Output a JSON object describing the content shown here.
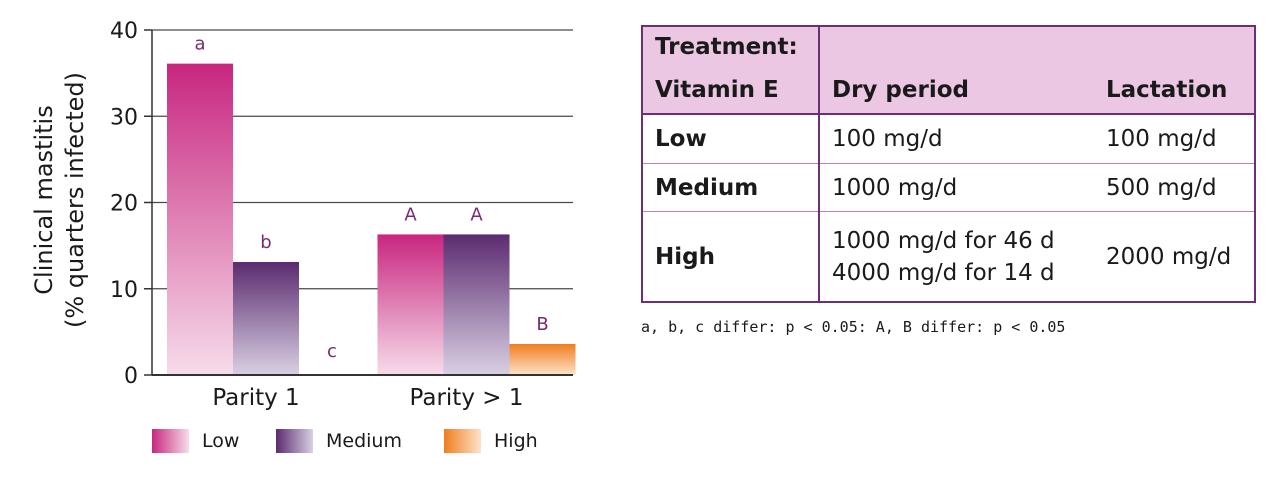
{
  "chart_data": {
    "type": "bar",
    "ylabel_line1": "Clinical mastitis",
    "ylabel_line2": "(% quarters infected)",
    "ylim": [
      0,
      40
    ],
    "yticks": [
      0,
      10,
      20,
      30,
      40
    ],
    "grid": true,
    "categories": [
      "Parity 1",
      "Parity > 1"
    ],
    "series": [
      {
        "name": "Low",
        "values": [
          36.1,
          16.3
        ],
        "sig": [
          "a",
          "A"
        ],
        "color_top": "#c8267f",
        "color_bottom": "#f7dcea"
      },
      {
        "name": "Medium",
        "values": [
          13.1,
          16.3
        ],
        "sig": [
          "b",
          "A"
        ],
        "color_top": "#5b2b6f",
        "color_bottom": "#d9d0e3"
      },
      {
        "name": "High",
        "values": [
          0,
          3.6
        ],
        "sig": [
          "c",
          "B"
        ],
        "color_top": "#f07e1e",
        "color_bottom": "#fde3cb"
      }
    ],
    "legend_position": "bottom"
  },
  "table": {
    "header_left_line1": "Treatment:",
    "header_left_line2": "Vitamin E",
    "header_dry": "Dry period",
    "header_lactation": "Lactation",
    "rows": [
      {
        "label": "Low",
        "dry": "100 mg/d",
        "lactation": "100 mg/d"
      },
      {
        "label": "Medium",
        "dry": "1000 mg/d",
        "lactation": "500 mg/d"
      },
      {
        "label": "High",
        "dry_line1": "1000 mg/d for 46 d",
        "dry_line2": "4000 mg/d for 14 d",
        "lactation": "2000 mg/d"
      }
    ],
    "header_bg": "#ecc7e3",
    "border_color": "#6b2f73"
  },
  "footnote": "a, b, c differ: p < 0.05: A, B differ: p < 0.05"
}
